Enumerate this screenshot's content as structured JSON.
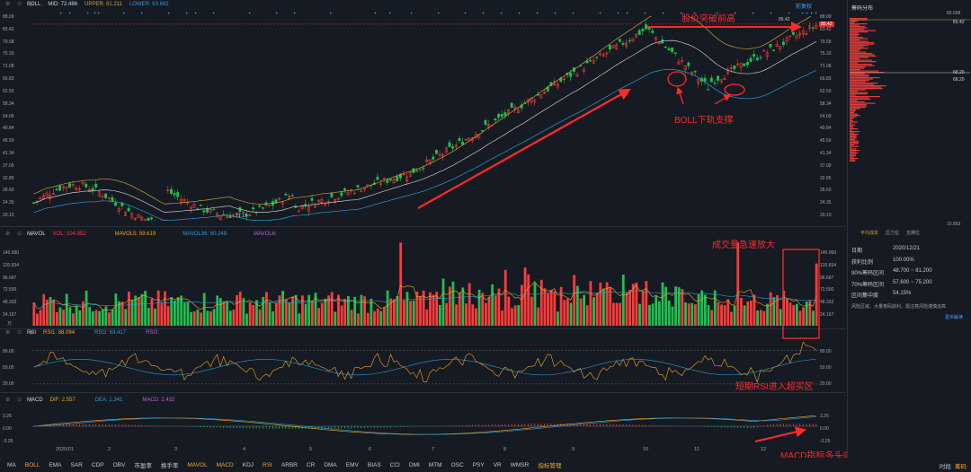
{
  "main": {
    "indicator_name": "BOLL",
    "mid_label": "MID: 72.486",
    "upper_label": "UPPER: 81.211",
    "lower_label": "LOWER: 63.692",
    "fuquan": "前复权",
    "y_ticks": [
      "88.09",
      "83.42",
      "79.58",
      "75.33",
      "71.08",
      "66.83",
      "62.59",
      "58.34",
      "54.09",
      "49.84",
      "45.59",
      "41.34",
      "37.09",
      "32.85",
      "28.60",
      "24.35",
      "20.10"
    ],
    "high_label": "85.42",
    "low_label": "21.17",
    "last_price": "85.42"
  },
  "vol": {
    "name": "MAVOL",
    "vol_label": "VOL: 104.852",
    "ma5_label": "MAVOL5: 59.619",
    "ma36_label": "MAVOL36: 60.249",
    "ma6_label": "MAVOL6:",
    "y_ticks": [
      "145.000",
      "120.834",
      "96.667",
      "72.500",
      "48.333",
      "24.167"
    ],
    "unit": "万"
  },
  "rsi": {
    "name": "RSI",
    "rsi1_label": "RSI1: 88.094",
    "rsi2_label": "RSI2: 63.417",
    "rsi3_label": "RSI3:",
    "y_ticks": [
      "80.00",
      "50.00",
      "20.00"
    ]
  },
  "macd": {
    "name": "MACD",
    "dif_label": "DIF: 2.557",
    "dea_label": "DEA: 1.341",
    "macd_label": "MACD: 2.432",
    "y_ticks": [
      "3.26",
      "0.00",
      "-3.25"
    ]
  },
  "x_axis": [
    "2020/01",
    "2",
    "3",
    "4",
    "5",
    "6",
    "7",
    "8",
    "9",
    "10",
    "11",
    "12"
  ],
  "annotations": {
    "breakout": "股价突破前高",
    "boll_support": "BOLL下轨支撑",
    "volume_surge": "成交量急速放大",
    "rsi_overbought": "短期RSI进入超买区",
    "macd_up": "MACD指标多头向上"
  },
  "chip_panel": {
    "title": "筹码分布",
    "top_price": "85.42",
    "labels_right": [
      "89.668",
      "85.42",
      "68.20",
      "68.20",
      "15.853"
    ],
    "legend": [
      "平均成本",
      "压力位",
      "支撑位"
    ],
    "rows": [
      {
        "k": "日期",
        "v": "2020/12/21"
      },
      {
        "k": "获利比例",
        "v": "100.00%"
      },
      {
        "k": "90%筹码区间",
        "v": "48.700 ~ 81.200"
      },
      {
        "k": "70%筹码区间",
        "v": "57.600 ~ 75.200"
      },
      {
        "k": "区间集中度",
        "v": "54.15%"
      }
    ],
    "note": "风险区域、大量筹码获利，需注意风险谨慎追高",
    "more": "更多解读"
  },
  "toolbar": [
    "MA",
    "BOLL",
    "EMA",
    "SAR",
    "CDP",
    "OBV",
    "市盈率",
    "换手率",
    "MAVOL",
    "MACD",
    "KDJ",
    "RSI",
    "ARBR",
    "CR",
    "DMA",
    "EMV",
    "BIAS",
    "CCI",
    "DMI",
    "MTM",
    "OSC",
    "PSY",
    "VR",
    "WMSR",
    "指标管理"
  ],
  "toolbar_active": [
    "BOLL",
    "MAVOL",
    "MACD",
    "RSI",
    "指标管理"
  ],
  "bottom_right": [
    "时段",
    "筹码"
  ],
  "colors": {
    "up": "#ff3b3b",
    "down": "#1fbf4f",
    "boll_upper": "#c8a23a",
    "boll_mid": "#c9c9c9",
    "boll_lower": "#2a9fd6",
    "accent": "#f5a623"
  }
}
